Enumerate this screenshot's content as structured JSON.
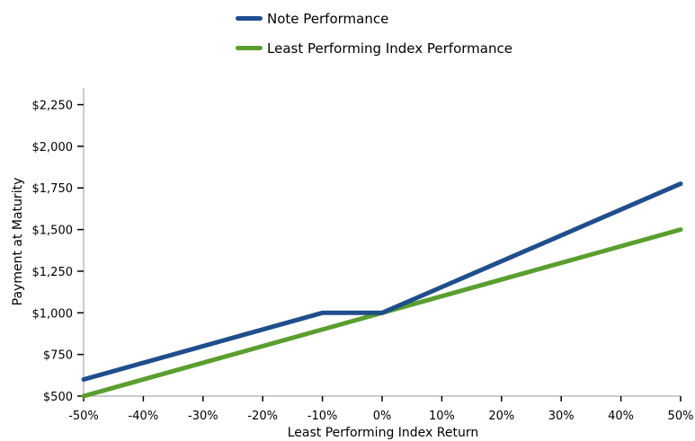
{
  "chart_data": {
    "type": "line",
    "xlabel": "Least Performing Index Return",
    "ylabel": "Payment at Maturity",
    "xlim": [
      -50,
      50
    ],
    "ylim": [
      500,
      2350
    ],
    "x_ticks": [
      -50,
      -40,
      -30,
      -20,
      -10,
      0,
      10,
      20,
      30,
      40,
      50
    ],
    "x_tick_labels": [
      "-50%",
      "-40%",
      "-30%",
      "-20%",
      "-10%",
      "0%",
      "10%",
      "20%",
      "30%",
      "40%",
      "50%"
    ],
    "y_ticks": [
      500,
      750,
      1000,
      1250,
      1500,
      1750,
      2000,
      2250
    ],
    "y_tick_labels": [
      "$500",
      "$750",
      "$1,000",
      "$1,250",
      "$1,500",
      "$1,750",
      "$2,000",
      "$2,250"
    ],
    "legend_position": "top-center",
    "series": [
      {
        "name": "Note Performance",
        "color": "#1f4e8c",
        "x": [
          -50,
          -10,
          0,
          50
        ],
        "y": [
          600,
          1000,
          1000,
          1775
        ]
      },
      {
        "name": "Least Performing Index Performance",
        "color": "#5a9e2f",
        "x": [
          -50,
          0,
          50
        ],
        "y": [
          500,
          1000,
          1500
        ]
      }
    ]
  }
}
